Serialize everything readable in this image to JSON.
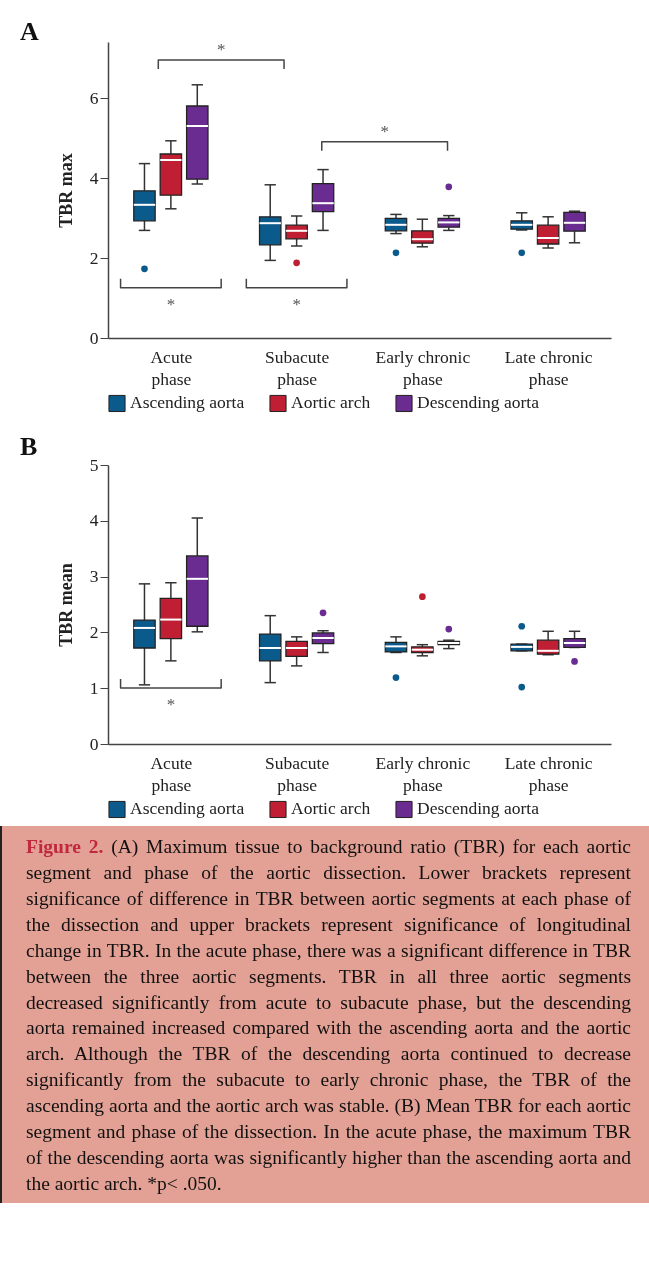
{
  "chart_data": [
    {
      "type": "box",
      "title": "A",
      "ylabel": "TBR max",
      "categories": [
        "Acute phase",
        "Subacute phase",
        "Early chronic phase",
        "Late chronic phase"
      ],
      "ylim": [
        0,
        7.4
      ],
      "yticks": [
        0,
        2,
        4,
        6
      ],
      "legend": "bottom",
      "series": [
        {
          "name": "Ascending aorta",
          "color": "#0b5a8c",
          "boxes": [
            {
              "low": 2.69,
              "q1": 2.93,
              "median": 3.33,
              "q3": 3.68,
              "high": 4.36,
              "outliers": [
                1.73
              ]
            },
            {
              "low": 1.94,
              "q1": 2.33,
              "median": 2.87,
              "q3": 3.03,
              "high": 3.83
            },
            {
              "low": 2.61,
              "q1": 2.68,
              "median": 2.83,
              "q3": 2.99,
              "high": 3.09,
              "outliers": [
                2.13
              ]
            },
            {
              "low": 2.7,
              "q1": 2.72,
              "median": 2.83,
              "q3": 2.93,
              "high": 3.13,
              "outliers": [
                2.13
              ]
            }
          ]
        },
        {
          "name": "Aortic arch",
          "color": "#c01f33",
          "boxes": [
            {
              "low": 3.23,
              "q1": 3.57,
              "median": 4.45,
              "q3": 4.6,
              "high": 4.93
            },
            {
              "low": 2.3,
              "q1": 2.48,
              "median": 2.68,
              "q3": 2.82,
              "high": 3.05,
              "outliers": [
                1.88
              ]
            },
            {
              "low": 2.28,
              "q1": 2.37,
              "median": 2.47,
              "q3": 2.68,
              "high": 2.97
            },
            {
              "low": 2.25,
              "q1": 2.35,
              "median": 2.5,
              "q3": 2.82,
              "high": 3.03
            }
          ]
        },
        {
          "name": "Descending aorta",
          "color": "#6a2c91",
          "boxes": [
            {
              "low": 3.85,
              "q1": 3.97,
              "median": 5.3,
              "q3": 5.8,
              "high": 6.33
            },
            {
              "low": 2.69,
              "q1": 3.16,
              "median": 3.37,
              "q3": 3.86,
              "high": 4.21
            },
            {
              "low": 2.69,
              "q1": 2.77,
              "median": 2.89,
              "q3": 2.99,
              "high": 3.06,
              "outliers": [
                3.78
              ]
            },
            {
              "low": 2.38,
              "q1": 2.67,
              "median": 2.88,
              "q3": 3.14,
              "high": 3.17
            }
          ]
        }
      ],
      "annotations": [
        "*",
        "*",
        "*",
        "*"
      ]
    },
    {
      "type": "box",
      "title": "B",
      "ylabel": "TBR mean",
      "categories": [
        "Acute phase",
        "Subacute phase",
        "Early chronic phase",
        "Late chronic phase"
      ],
      "ylim": [
        0,
        5
      ],
      "yticks": [
        0,
        1,
        2,
        3,
        4,
        5
      ],
      "legend": "bottom",
      "series": [
        {
          "name": "Ascending aorta",
          "color": "#0b5a8c",
          "boxes": [
            {
              "low": 1.06,
              "q1": 1.72,
              "median": 2.08,
              "q3": 2.22,
              "high": 2.87
            },
            {
              "low": 1.1,
              "q1": 1.49,
              "median": 1.72,
              "q3": 1.97,
              "high": 2.3
            },
            {
              "low": 1.64,
              "q1": 1.65,
              "median": 1.75,
              "q3": 1.82,
              "high": 1.92,
              "outliers": [
                1.19
              ]
            },
            {
              "low": 1.67,
              "q1": 1.67,
              "median": 1.74,
              "q3": 1.79,
              "high": 1.79,
              "outliers": [
                2.11,
                1.02
              ]
            }
          ]
        },
        {
          "name": "Aortic arch",
          "color": "#c01f33",
          "boxes": [
            {
              "low": 1.49,
              "q1": 1.89,
              "median": 2.23,
              "q3": 2.61,
              "high": 2.89
            },
            {
              "low": 1.4,
              "q1": 1.57,
              "median": 1.72,
              "q3": 1.84,
              "high": 1.92
            },
            {
              "low": 1.58,
              "q1": 1.64,
              "median": 1.69,
              "q3": 1.74,
              "high": 1.78,
              "outliers": [
                2.64
              ]
            },
            {
              "low": 1.6,
              "q1": 1.61,
              "median": 1.67,
              "q3": 1.86,
              "high": 2.02
            }
          ]
        },
        {
          "name": "Descending aorta",
          "color": "#6a2c91",
          "boxes": [
            {
              "low": 2.01,
              "q1": 2.11,
              "median": 2.96,
              "q3": 3.37,
              "high": 4.05
            },
            {
              "low": 1.64,
              "q1": 1.8,
              "median": 1.9,
              "q3": 1.99,
              "high": 2.03,
              "outliers": [
                2.35
              ]
            },
            {
              "low": 1.71,
              "q1": 1.78,
              "median": 1.81,
              "q3": 1.84,
              "high": 1.86,
              "outliers": [
                2.06
              ]
            },
            {
              "low": 1.73,
              "q1": 1.73,
              "median": 1.81,
              "q3": 1.89,
              "high": 2.02,
              "outliers": [
                1.48
              ]
            }
          ]
        }
      ],
      "annotations": [
        "*",
        "Figure 2.",
        "(A) Maximum tissue to background ratio (TBR) for each aortic segment and phase of the aortic dissection. Lower brackets represent significance of difference in TBR between aortic segments at each phase of the dissection and upper brackets represent significance of longitudinal change in TBR. In the acute phase, there was a significant difference in TBR between the three aortic segments. TBR in all three aortic segments decreased significantly from acute to subacute phase, but the descending aorta remained increased compared with the ascending aorta and the aortic arch. Although the TBR of the descending aorta continued to decrease significantly from the subacute to early chronic phase, the TBR of the ascending aorta and the aortic arch was stable. (B) Mean TBR for each aortic segment and phase of the dissection. In the acute phase, the maximum TBR of the descending aorta was significantly higher than the ascending aorta and the aortic arch. *p< .050."
      ]
    }
  ]
}
